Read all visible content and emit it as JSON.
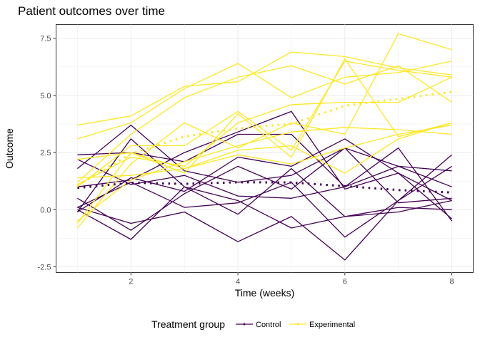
{
  "chart_data": {
    "type": "line",
    "title": "Patient outcomes over time",
    "xlabel": "Time (weeks)",
    "ylabel": "Outcome",
    "xlim": [
      0.6,
      8.4
    ],
    "ylim": [
      -2.75,
      8.1
    ],
    "x_ticks": [
      2,
      4,
      6,
      8
    ],
    "y_ticks": [
      -2.5,
      0.0,
      2.5,
      5.0,
      7.5
    ],
    "x_tick_labels": [
      "2",
      "4",
      "6",
      "8"
    ],
    "y_tick_labels": [
      "-2.5",
      "0.0",
      "2.5",
      "5.0",
      "7.5"
    ],
    "grid": true,
    "legend_position": "bottom",
    "legend": {
      "title": "Treatment group",
      "entries": [
        {
          "label": "Control",
          "color": "#440154"
        },
        {
          "label": "Experimental",
          "color": "#fde725"
        }
      ]
    },
    "x": [
      1,
      2,
      3,
      4,
      5,
      6,
      7,
      8
    ],
    "groups": [
      {
        "group": "Control",
        "color": "#440154",
        "lines": [
          [
            2.4,
            2.5,
            2.1,
            3.3,
            3.3,
            1.0,
            1.9,
            1.7
          ],
          [
            1.8,
            3.7,
            1.7,
            1.2,
            1.5,
            2.7,
            1.9,
            1.0
          ],
          [
            2.2,
            1.1,
            1.5,
            0.6,
            0.5,
            1.0,
            2.7,
            -0.5
          ],
          [
            0.5,
            -0.9,
            0.7,
            1.9,
            0.9,
            2.7,
            0.3,
            0.5
          ],
          [
            0.1,
            1.2,
            0.1,
            0.3,
            1.2,
            -1.2,
            0.4,
            1.9
          ],
          [
            0.1,
            -0.6,
            -0.1,
            -1.4,
            -0.3,
            -2.2,
            0.4,
            2.4
          ],
          [
            -0.1,
            1.4,
            0.8,
            2.3,
            1.9,
            3.1,
            1.6,
            0.4
          ],
          [
            0.0,
            -1.3,
            1.0,
            0.4,
            -0.8,
            -0.3,
            -0.1,
            0.4
          ],
          [
            1.0,
            1.3,
            2.5,
            3.4,
            4.3,
            0.9,
            1.6,
            -0.4
          ],
          [
            -0.1,
            3.1,
            1.0,
            -0.2,
            1.8,
            -0.3,
            0.1,
            0.0
          ]
        ],
        "mean": [
          0.95,
          1.18,
          1.13,
          1.2,
          1.19,
          1.03,
          0.86,
          0.75
        ]
      },
      {
        "group": "Experimental",
        "color": "#fde725",
        "lines": [
          [
            3.7,
            4.1,
            5.4,
            5.6,
            6.9,
            6.7,
            6.2,
            5.9
          ],
          [
            3.1,
            3.8,
            5.3,
            6.4,
            4.9,
            5.8,
            6.0,
            6.5
          ],
          [
            1.2,
            3.3,
            4.9,
            5.8,
            6.3,
            5.5,
            6.3,
            4.7
          ],
          [
            1.0,
            2.8,
            2.8,
            4.3,
            2.6,
            6.5,
            6.1,
            5.8
          ],
          [
            -0.8,
            2.0,
            3.8,
            2.7,
            3.8,
            3.3,
            7.7,
            7.0
          ],
          [
            1.1,
            2.3,
            1.9,
            3.8,
            4.6,
            4.7,
            4.7,
            5.8
          ],
          [
            2.2,
            2.5,
            1.6,
            4.2,
            2.3,
            6.6,
            3.2,
            3.8
          ],
          [
            -0.5,
            1.3,
            2.1,
            2.8,
            3.4,
            3.6,
            3.5,
            3.3
          ],
          [
            -0.6,
            2.5,
            1.8,
            2.6,
            2.8,
            1.6,
            3.1,
            3.8
          ],
          [
            1.4,
            1.5,
            1.8,
            2.4,
            2.0,
            2.7,
            3.3,
            3.7
          ]
        ],
        "mean": [
          1.05,
          2.45,
          3.2,
          3.55,
          3.75,
          4.55,
          4.85,
          5.15
        ]
      }
    ]
  }
}
